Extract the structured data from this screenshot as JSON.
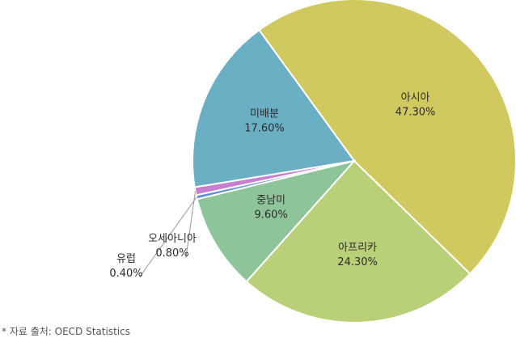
{
  "chart_data": {
    "type": "pie",
    "slices": [
      {
        "label": "아시아",
        "value": 47.3,
        "value_label": "47.30%",
        "color": "#cfc95f"
      },
      {
        "label": "아프리카",
        "value": 24.3,
        "value_label": "24.30%",
        "color": "#b9d078"
      },
      {
        "label": "중남미",
        "value": 9.6,
        "value_label": "9.60%",
        "color": "#8ec49a"
      },
      {
        "label": "유럽",
        "value": 0.4,
        "value_label": "0.40%",
        "color": "#5b8fd6"
      },
      {
        "label": "오세아니아",
        "value": 0.8,
        "value_label": "0.80%",
        "color": "#c97fd0"
      },
      {
        "label": "미배분",
        "value": 17.6,
        "value_label": "17.60%",
        "color": "#6bafc4"
      }
    ],
    "start_angle_deg": 324,
    "direction": "clockwise",
    "grid": false,
    "legend": "none"
  },
  "source_note": "* 자료 출처: OECD Statistics"
}
